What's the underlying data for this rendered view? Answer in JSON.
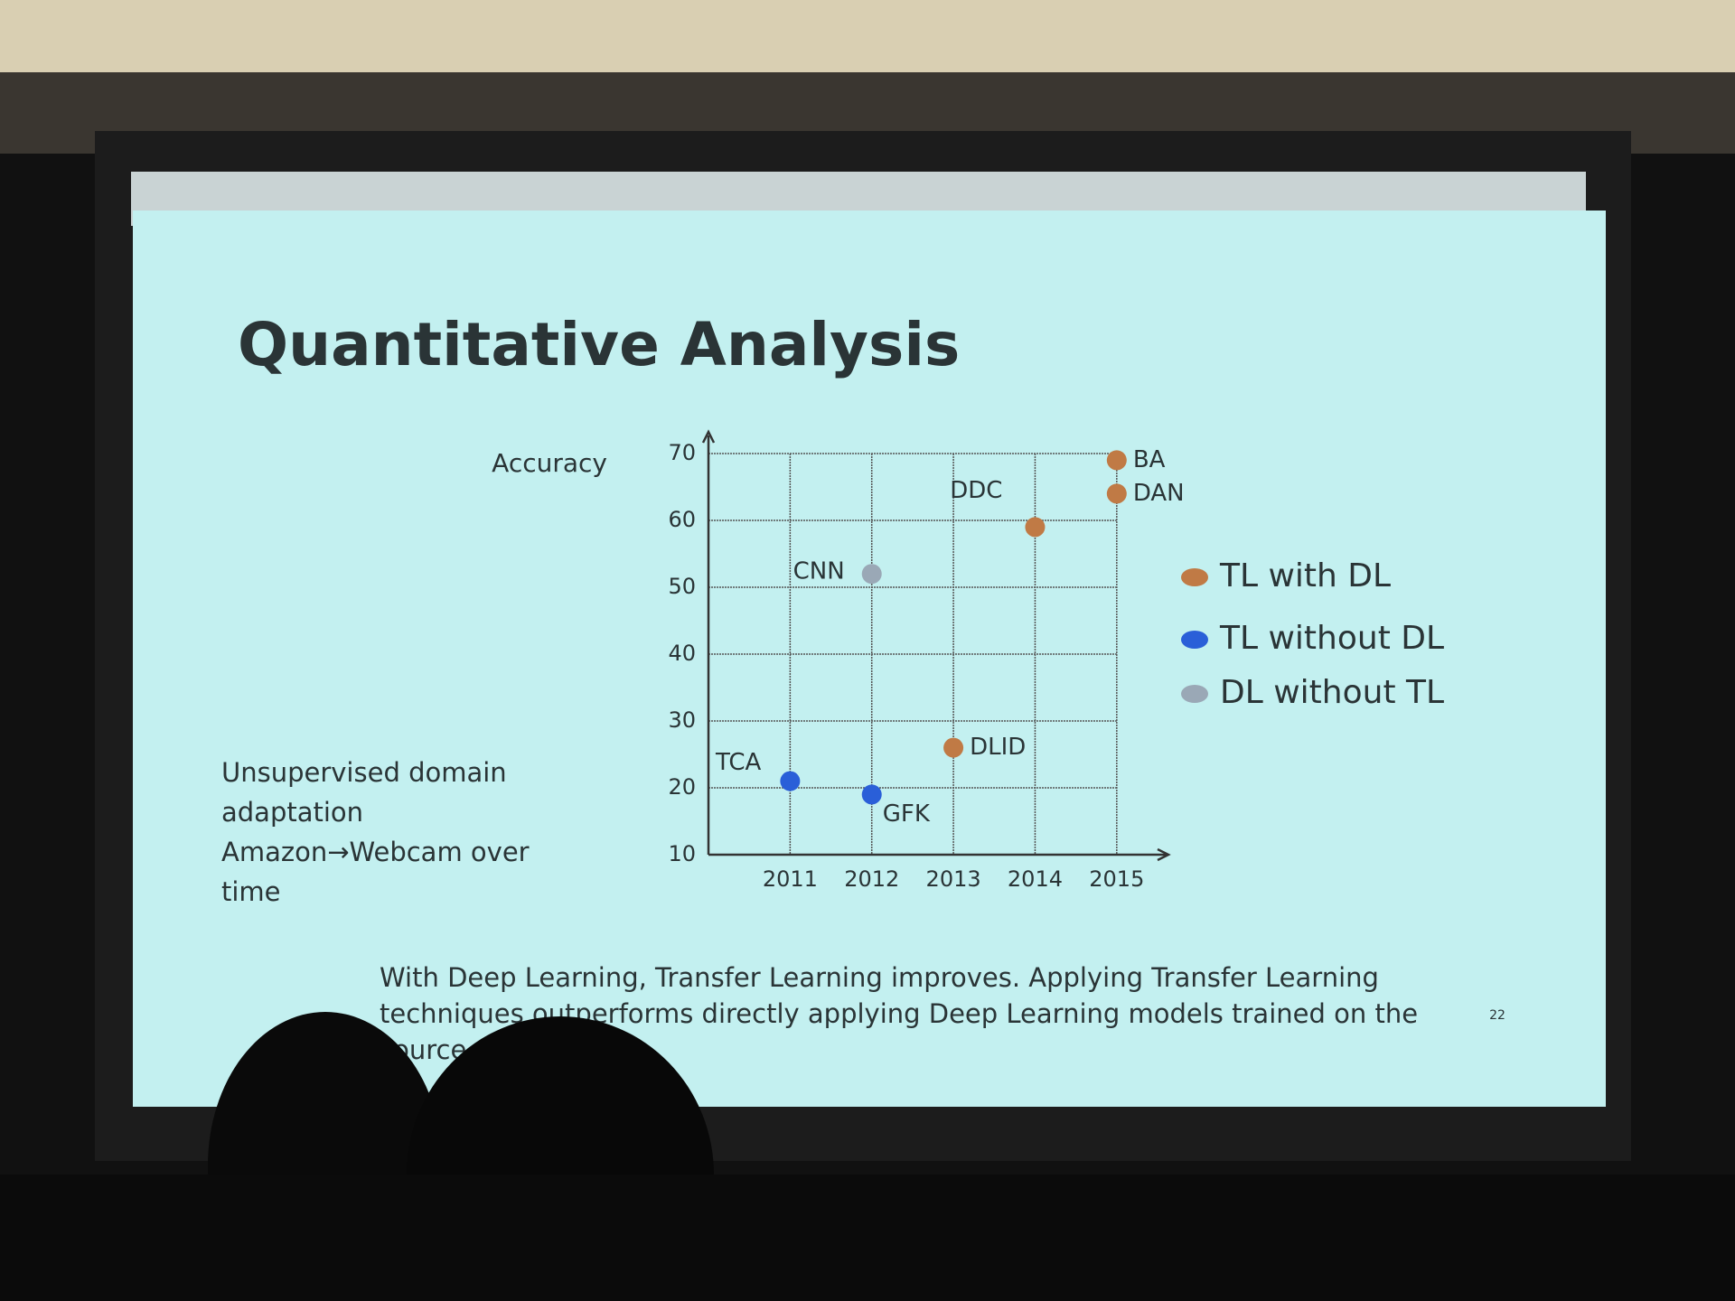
{
  "slide_title": "Quantitative Analysis",
  "side_note": [
    "Unsupervised domain",
    "adaptation",
    "Amazon→Webcam over",
    "time"
  ],
  "caption": [
    "With Deep Learning, Transfer Learning improves.  Applying Transfer Learning",
    "techniques outperforms directly applying Deep Learning models trained on the",
    "source."
  ],
  "page_number": "22",
  "chart_data": {
    "type": "scatter",
    "y_label": "Accuracy",
    "xlim": [
      2010,
      2015.5
    ],
    "xticks": [
      2011,
      2012,
      2013,
      2014,
      2015
    ],
    "ylim": [
      10,
      70
    ],
    "yticks": [
      10,
      20,
      30,
      40,
      50,
      60,
      70
    ],
    "grid": true,
    "series": [
      {
        "name": "TL with DL",
        "color": "#c07a45",
        "x": [
          2013,
          2014,
          2015,
          2015
        ],
        "values": [
          26,
          59,
          64,
          69
        ],
        "labels": [
          "DLID",
          "DDC",
          "DAN",
          "BA"
        ]
      },
      {
        "name": "TL without DL",
        "color": "#2a5fd8",
        "x": [
          2011,
          2012
        ],
        "values": [
          21,
          19
        ],
        "labels": [
          "TCA",
          "GFK"
        ]
      },
      {
        "name": "DL without TL",
        "color": "#9aa8b6",
        "x": [
          2012
        ],
        "values": [
          52
        ],
        "labels": [
          "CNN"
        ]
      }
    ]
  }
}
